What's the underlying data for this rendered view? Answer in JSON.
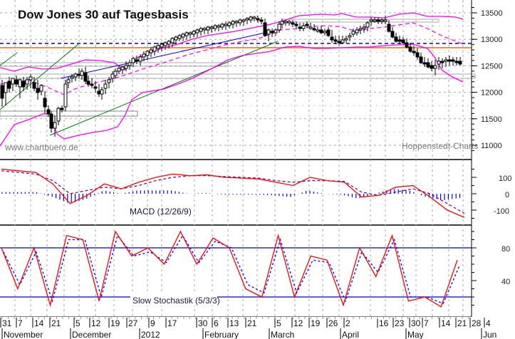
{
  "title": "Dow Jones 30 auf Tagesbasis",
  "watermark_left": "www.chartbuero.de",
  "watermark_right": "Hoppenstedt-Charts",
  "macd_label": "MACD (12/26/9)",
  "stoch_label": "Slow Stochastik (5/3/3)",
  "colors": {
    "candle": "#000000",
    "bollinger": "#ff00ff",
    "trend_up_green": "#008000",
    "trend_blue": "#0000cc",
    "support_orange": "#ff6600",
    "resistance_blue_dashed": "#0000cc",
    "macd_line": "#ff0000",
    "macd_signal": "#660099",
    "macd_hist": "#0000ff",
    "stoch_k": "#ff0000",
    "stoch_d": "#0000ff",
    "grid": "#aaaaaa"
  },
  "chart_data": [
    {
      "type": "candlestick",
      "title": "Dow Jones 30 auf Tagesbasis",
      "xlabel": "",
      "ylabel": "",
      "ylim": [
        10800,
        13650
      ],
      "yticks": [
        11000,
        11500,
        12000,
        12500,
        13000,
        13500
      ],
      "grid": true,
      "overlays": [
        "Bollinger Bands (upper, middle, lower)",
        "trend lines",
        "horizontal support 12750",
        "horizontal resistance 12820",
        "gray support zones ~11500, ~12200, ~12400, ~13300"
      ],
      "x_labels_days": [
        "31",
        "7",
        "14",
        "21",
        "5",
        "12",
        "19",
        "27",
        "9",
        "17",
        "30",
        "6",
        "13",
        "21",
        "5",
        "12",
        "19",
        "26",
        "2",
        "16",
        "23",
        "30",
        "7",
        "14",
        "21",
        "28",
        "4"
      ],
      "x_labels_months": [
        "November",
        "December",
        "2012",
        "February",
        "March",
        "April",
        "May",
        "Jun"
      ],
      "approx_closes": {
        "dates": [
          "Oct 31",
          "Nov 7",
          "Nov 14",
          "Nov 21",
          "Nov 25",
          "Dec 5",
          "Dec 12",
          "Dec 19",
          "Dec 27",
          "Jan 9",
          "Jan 17",
          "Jan 30",
          "Feb 6",
          "Feb 13",
          "Feb 21",
          "Mar 5",
          "Mar 12",
          "Mar 19",
          "Mar 26",
          "Apr 2",
          "Apr 10",
          "Apr 16",
          "Apr 23",
          "Apr 30",
          "May 7",
          "May 14",
          "May 21",
          "May 25"
        ],
        "values": [
          11950,
          12150,
          11900,
          11500,
          11250,
          12100,
          12000,
          11850,
          12300,
          12400,
          12600,
          12700,
          12850,
          12900,
          12950,
          12800,
          13200,
          13250,
          13150,
          13250,
          12900,
          13000,
          12950,
          13250,
          12800,
          12600,
          12500,
          12450
        ]
      },
      "horizontal_levels": [
        {
          "name": "support",
          "value": 12750,
          "color": "#ff6600"
        },
        {
          "name": "resistance_dashed",
          "value": 12820,
          "color": "#0000cc"
        }
      ]
    },
    {
      "type": "line",
      "title": "MACD (12/26/9)",
      "ylim": [
        -170,
        190
      ],
      "yticks": [
        -100,
        0,
        100
      ],
      "series": [
        {
          "name": "MACD",
          "values": [
            150,
            140,
            130,
            60,
            -60,
            -10,
            60,
            30,
            70,
            100,
            120,
            110,
            115,
            100,
            95,
            90,
            70,
            50,
            100,
            80,
            70,
            -20,
            -10,
            40,
            50,
            -20,
            -100,
            -145
          ]
        },
        {
          "name": "Signal",
          "values": [
            140,
            130,
            120,
            80,
            0,
            20,
            40,
            30,
            50,
            80,
            100,
            110,
            110,
            105,
            100,
            95,
            80,
            70,
            80,
            80,
            75,
            10,
            -10,
            10,
            30,
            0,
            -60,
            -120
          ]
        },
        {
          "name": "Histogram",
          "values": [
            10,
            10,
            10,
            -20,
            -60,
            -30,
            20,
            0,
            20,
            20,
            20,
            0,
            5,
            -5,
            -5,
            -5,
            -10,
            -20,
            20,
            0,
            -5,
            -30,
            0,
            30,
            20,
            -20,
            -40,
            -25
          ]
        }
      ]
    },
    {
      "type": "line",
      "title": "Slow Stochastik (5/3/3)",
      "ylim": [
        0,
        100
      ],
      "yticks": [
        40,
        80
      ],
      "reference_lines": [
        20,
        80
      ],
      "series": [
        {
          "name": "%K",
          "values": [
            80,
            30,
            80,
            10,
            95,
            90,
            15,
            100,
            70,
            80,
            60,
            100,
            60,
            92,
            80,
            30,
            20,
            95,
            20,
            70,
            65,
            10,
            80,
            45,
            95,
            15,
            20,
            8,
            65
          ]
        },
        {
          "name": "%D",
          "values": [
            75,
            35,
            75,
            15,
            90,
            90,
            20,
            95,
            70,
            75,
            62,
            95,
            62,
            88,
            80,
            35,
            25,
            90,
            25,
            65,
            62,
            15,
            75,
            50,
            90,
            20,
            20,
            12,
            58
          ]
        }
      ]
    }
  ],
  "y_axis_price": {
    "ticks": [
      "13500",
      "13000",
      "12500",
      "12000",
      "11500",
      "11000"
    ]
  },
  "y_axis_macd": {
    "ticks": [
      "100",
      "0",
      "-100"
    ]
  },
  "y_axis_stoch": {
    "ticks": [
      "80",
      "40"
    ]
  },
  "x_axis": {
    "days": [
      "31",
      "7",
      "14",
      "21",
      "5",
      "12",
      "19",
      "27",
      "9",
      "17",
      "30",
      "6",
      "13",
      "21",
      "5",
      "12",
      "19",
      "26",
      "2",
      "16",
      "23",
      "30",
      "7",
      "14",
      "21",
      "28",
      "4"
    ],
    "months": [
      "November",
      "December",
      "2012",
      "February",
      "March",
      "April",
      "May",
      "Jun"
    ]
  }
}
